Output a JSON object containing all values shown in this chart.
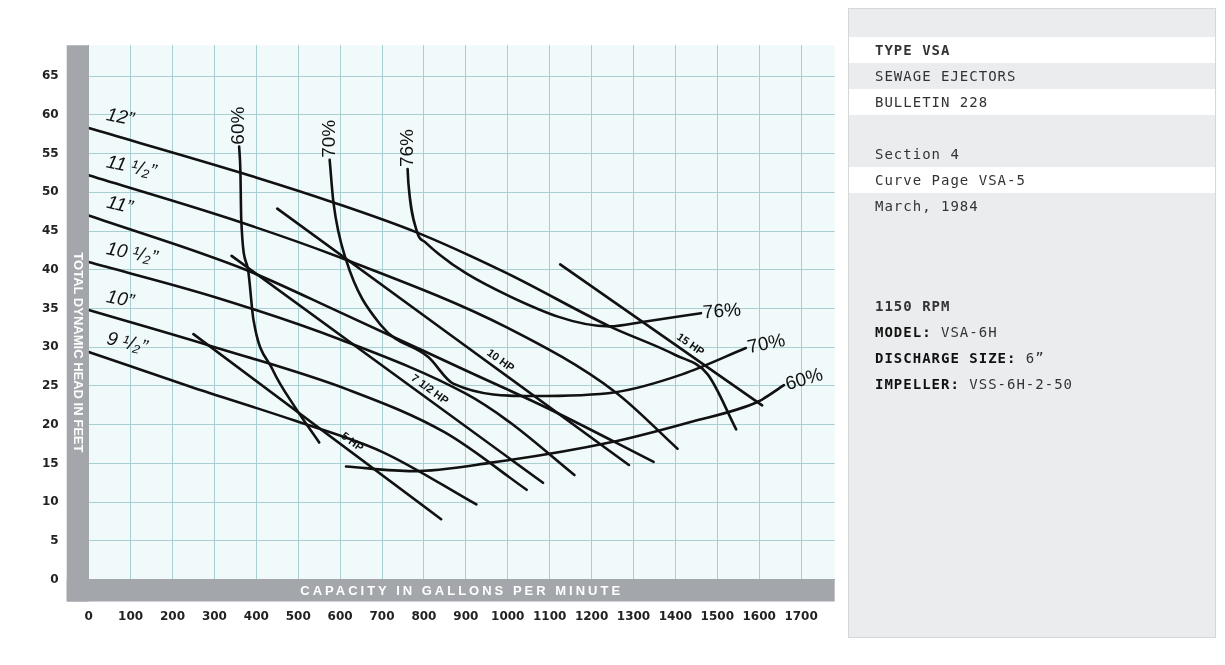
{
  "chart_data": {
    "type": "line",
    "xlabel": "CAPACITY IN GALLONS PER MINUTE",
    "ylabel": "TOTAL DYNAMIC HEAD IN FEET",
    "xlim": [
      0,
      1780
    ],
    "ylim": [
      0,
      69
    ],
    "xticks": [
      0,
      100,
      200,
      300,
      400,
      500,
      600,
      700,
      800,
      900,
      1000,
      1100,
      1200,
      1300,
      1400,
      1500,
      1600,
      1700
    ],
    "yticks": [
      0,
      5,
      10,
      15,
      20,
      25,
      30,
      35,
      40,
      45,
      50,
      55,
      60,
      65
    ],
    "grid": true,
    "marker": "none",
    "line_style": "solid",
    "series": [
      {
        "name": "12”",
        "color": "#111111",
        "x": [
          0,
          359,
          584,
          784,
          1000,
          1243,
          1400,
          1477,
          1545
        ],
        "values": [
          58.3,
          52.6,
          48.7,
          44.8,
          39.5,
          32.7,
          29,
          26.5,
          19.4
        ]
      },
      {
        "name": "11 ¹/₂”",
        "color": "#111111",
        "x": [
          0,
          359,
          614,
          1000,
          1257,
          1405
        ],
        "values": [
          52.2,
          46.2,
          41.3,
          32.5,
          24.2,
          16.9
        ]
      },
      {
        "name": "11”",
        "color": "#111111",
        "x": [
          0,
          370,
          600,
          900,
          1100,
          1348
        ],
        "values": [
          47,
          40.1,
          34.5,
          27,
          22,
          15.2
        ]
      },
      {
        "name": "10 ¹/₂”",
        "color": "#111111",
        "x": [
          0,
          300,
          600,
          900,
          1000,
          1159
        ],
        "values": [
          41,
          36.5,
          31,
          24,
          20.5,
          13.5
        ]
      },
      {
        "name": "10”",
        "color": "#111111",
        "x": [
          0,
          289,
          620,
          850,
          1045
        ],
        "values": [
          34.8,
          30.2,
          24.5,
          19,
          11.6
        ]
      },
      {
        "name": "9 ¹/₂”",
        "color": "#111111",
        "x": [
          0,
          243,
          493,
          700,
          925
        ],
        "values": [
          29.4,
          24.9,
          20.5,
          16.5,
          9.7
        ]
      },
      {
        "name": "15 HP",
        "color": "#111111",
        "x": [
          1125,
          1607
        ],
        "values": [
          40.7,
          22.5
        ]
      },
      {
        "name": "10 HP",
        "color": "#111111",
        "x": [
          450,
          1289
        ],
        "values": [
          47.9,
          14.8
        ]
      },
      {
        "name": "7 1/2 HP",
        "color": "#111111",
        "x": [
          341,
          1084
        ],
        "values": [
          41.8,
          12.5
        ]
      },
      {
        "name": "5 HP",
        "color": "#111111",
        "x": [
          250,
          841
        ],
        "values": [
          31.7,
          7.8
        ]
      },
      {
        "name": "60%",
        "color": "#111111",
        "x": [
          359,
          362,
          364,
          380,
          393,
          439,
          493,
          550,
          580,
          614,
          773,
          961,
          1243,
          1432,
          1598,
          1659
        ],
        "values": [
          55.9,
          52.7,
          46.5,
          40.1,
          33.6,
          27.1,
          22.2,
          17.7,
          null,
          14.6,
          14,
          15.1,
          17.7,
          20.3,
          23,
          25.1
        ]
      },
      {
        "name": "70%",
        "color": "#111111",
        "x": [
          575,
          584,
          614,
          698,
          811,
          870,
          1061,
          1257,
          1416,
          1568
        ],
        "values": [
          54.2,
          48.7,
          41.3,
          32.8,
          28.7,
          25.3,
          23.7,
          24.2,
          26.5,
          29.9
        ]
      },
      {
        "name": "76%",
        "color": "#111111",
        "x": [
          761,
          763,
          784,
          802,
          1000,
          1243,
          1325,
          1461
        ],
        "values": [
          53,
          51.1,
          44.8,
          43.6,
          36.7,
          32.7,
          33.3,
          34.4
        ]
      }
    ],
    "annotations": [
      "TYPE VSA",
      "SEWAGE EJECTORS",
      "BULLETIN 228",
      "Section 4",
      "Curve Page VSA-5",
      "March, 1984",
      "1150 RPM",
      "MODEL: VSA-6H",
      "DISCHARGE SIZE: 6”",
      "IMPELLER: VSS-6H-2-50"
    ]
  }
}
